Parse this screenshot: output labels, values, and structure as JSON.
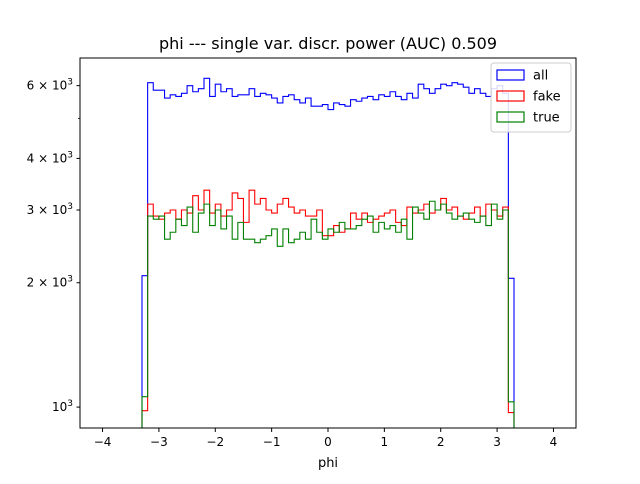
{
  "chart_data": {
    "type": "histogram-step",
    "title": "phi --- single var. discr. power (AUC) 0.509",
    "xlabel": "phi",
    "ylabel": "",
    "xlim": [
      -4.4,
      4.4
    ],
    "ylim": [
      890,
      7000
    ],
    "yscale": "log",
    "grid": false,
    "legend_position": "top-right",
    "x_ticks": [
      -4,
      -3,
      -2,
      -1,
      0,
      1,
      2,
      3,
      4
    ],
    "y_tick_labels": [
      {
        "value": 1000,
        "base": "10",
        "exp": "3",
        "text": "10^3"
      },
      {
        "value": 2000,
        "mantissa": "2",
        "base": "10",
        "exp": "3",
        "text": "2 × 10^3"
      },
      {
        "value": 3000,
        "mantissa": "3",
        "base": "10",
        "exp": "3",
        "text": "3 × 10^3"
      },
      {
        "value": 4000,
        "mantissa": "4",
        "base": "10",
        "exp": "3",
        "text": "4 × 10^3"
      },
      {
        "value": 6000,
        "mantissa": "6",
        "base": "10",
        "exp": "3",
        "text": "6 × 10^3"
      }
    ],
    "y_minor_ticks": [
      5000
    ],
    "bins": {
      "start": -3.3,
      "width": 0.1,
      "count": 66
    },
    "series": [
      {
        "name": "all",
        "color": "#0000ff",
        "values": [
          2080,
          6100,
          5850,
          5850,
          5600,
          5700,
          5650,
          5750,
          6000,
          5800,
          5900,
          6250,
          5650,
          6050,
          5800,
          5900,
          5650,
          5700,
          5700,
          5900,
          5650,
          5750,
          5700,
          5600,
          5450,
          5650,
          5700,
          5550,
          5450,
          5600,
          5350,
          5350,
          5400,
          5250,
          5450,
          5400,
          5350,
          5550,
          5500,
          5600,
          5650,
          5550,
          5700,
          5650,
          5800,
          5650,
          5550,
          5750,
          5600,
          6050,
          5900,
          5750,
          5900,
          6050,
          6000,
          6100,
          6050,
          5950,
          5750,
          5900,
          5750,
          5650,
          5900,
          6000,
          5750,
          2050
        ]
      },
      {
        "name": "fake",
        "color": "#ff0000",
        "values": [
          980,
          3100,
          2900,
          2850,
          2950,
          3000,
          2850,
          3000,
          2950,
          3250,
          3000,
          3350,
          2950,
          3100,
          2900,
          3000,
          3300,
          3200,
          2800,
          3350,
          3100,
          3200,
          3000,
          2950,
          3100,
          3200,
          3050,
          2950,
          3000,
          2900,
          2900,
          3000,
          2600,
          2600,
          2750,
          2650,
          2700,
          2950,
          2850,
          2950,
          2800,
          2850,
          2900,
          2950,
          3000,
          2800,
          2750,
          3050,
          2950,
          3000,
          3100,
          2950,
          3000,
          3200,
          3000,
          3050,
          2900,
          2850,
          2950,
          3050,
          2900,
          3100,
          3000,
          2900,
          3050,
          970
        ]
      },
      {
        "name": "true",
        "color": "#008000",
        "values": [
          1060,
          2900,
          2850,
          2900,
          2550,
          2650,
          2850,
          2750,
          3050,
          2650,
          2950,
          3100,
          2750,
          3000,
          2700,
          2900,
          2550,
          2800,
          2550,
          2550,
          2500,
          2550,
          2600,
          2700,
          2450,
          2700,
          2500,
          2550,
          2650,
          2550,
          2850,
          2650,
          2550,
          2700,
          2650,
          2800,
          2700,
          2700,
          2750,
          2850,
          2900,
          2650,
          2800,
          2700,
          2750,
          2650,
          2850,
          2550,
          3050,
          2950,
          2850,
          3150,
          3000,
          3100,
          2950,
          2850,
          2900,
          2950,
          2850,
          2800,
          2900,
          2750,
          3100,
          2850,
          3000,
          1030
        ]
      }
    ]
  }
}
